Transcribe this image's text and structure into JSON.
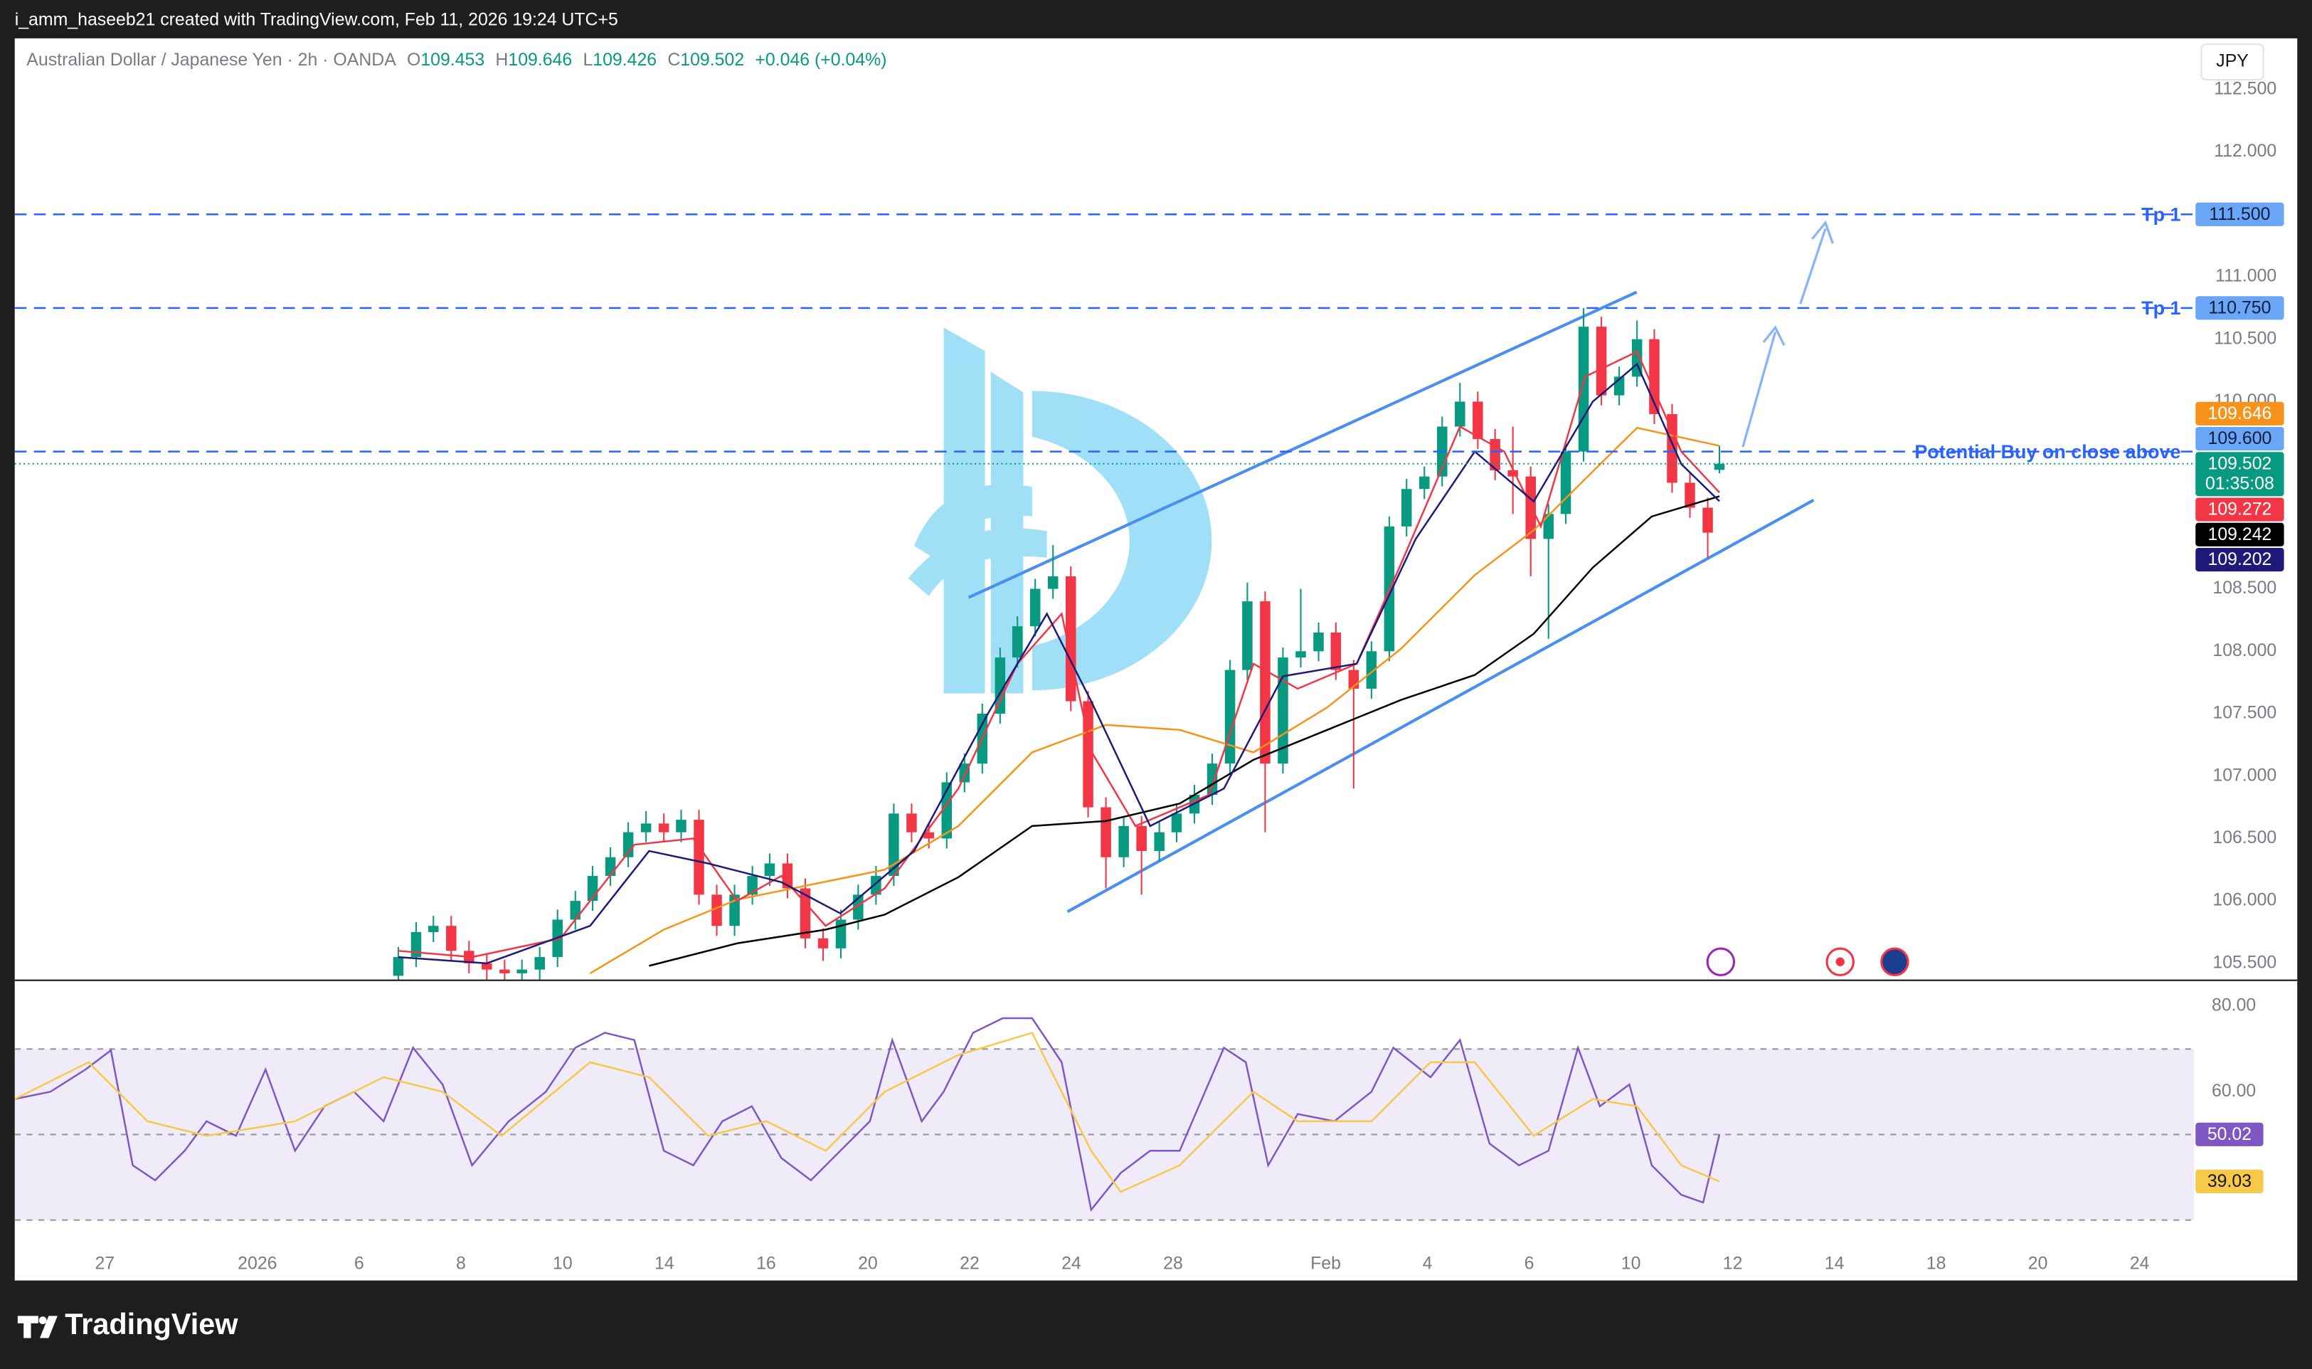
{
  "header": {
    "credit": "i_amm_haseeb21 created with TradingView.com, Feb 11, 2026 19:24 UTC+5"
  },
  "footer": {
    "brand": "TradingView"
  },
  "chart_data": [
    {
      "type": "candlestick",
      "title": "Australian Dollar / Japanese Yen · 2h · OANDA",
      "ohlc_letters": [
        "O",
        "H",
        "L",
        "C"
      ],
      "change": "+0.046 (+0.04%)",
      "currency": "JPY",
      "countdown": "01:35:08",
      "up_color": "#089981",
      "down_color": "#f23645",
      "x": [
        5.77,
        6.12,
        6.46,
        6.81,
        7.16,
        7.51,
        7.86,
        8.2,
        8.55,
        8.9,
        9.25,
        9.59,
        9.94,
        10.29,
        10.64,
        10.99,
        11.33,
        11.68,
        12.03,
        12.38,
        12.73,
        13.07,
        13.42,
        13.77,
        14.12,
        14.47,
        14.81,
        15.16,
        15.51,
        15.86,
        16.2,
        16.55,
        16.9,
        17.25,
        17.6,
        17.94,
        18.29,
        18.64,
        18.99,
        19.33,
        19.68,
        20.03,
        20.38,
        20.73,
        21.07,
        21.42,
        21.77,
        22.12,
        22.46,
        22.81,
        23.16,
        23.51,
        23.86,
        24.2,
        24.55,
        24.9,
        25.25,
        25.59,
        25.94,
        26.29,
        26.64,
        26.99,
        27.33,
        27.68,
        28.03,
        28.38,
        28.72,
        29.07,
        29.42,
        29.77,
        30.12,
        30.46,
        30.81,
        31.16,
        31.51,
        31.74
      ],
      "open": [
        105.4,
        105.55,
        105.75,
        105.8,
        105.6,
        105.5,
        105.45,
        105.42,
        105.45,
        105.55,
        105.85,
        106.0,
        106.2,
        106.35,
        106.55,
        106.62,
        106.55,
        106.65,
        106.05,
        105.8,
        106.05,
        106.2,
        106.3,
        106.1,
        105.7,
        105.62,
        105.85,
        106.05,
        106.2,
        106.7,
        106.55,
        106.5,
        106.95,
        107.1,
        107.5,
        107.95,
        108.2,
        108.5,
        108.6,
        107.6,
        106.75,
        106.35,
        106.6,
        106.4,
        106.55,
        106.7,
        106.85,
        107.1,
        107.85,
        108.4,
        107.1,
        107.95,
        108.0,
        108.15,
        107.85,
        107.7,
        108.0,
        109.0,
        109.3,
        109.4,
        109.8,
        110.0,
        109.7,
        109.45,
        109.4,
        108.9,
        109.1,
        109.6,
        110.6,
        110.05,
        110.2,
        110.5,
        109.9,
        109.35,
        109.15,
        109.453
      ],
      "high": [
        105.63,
        105.83,
        105.88,
        105.88,
        105.68,
        105.58,
        105.53,
        105.53,
        105.63,
        105.93,
        106.08,
        106.28,
        106.43,
        106.63,
        106.72,
        106.7,
        106.73,
        106.73,
        106.13,
        106.13,
        106.28,
        106.38,
        106.38,
        106.18,
        105.78,
        105.93,
        106.13,
        106.28,
        106.78,
        106.78,
        106.63,
        107.03,
        107.18,
        107.58,
        108.03,
        108.28,
        108.58,
        108.85,
        108.68,
        107.68,
        106.83,
        106.68,
        106.68,
        106.63,
        106.78,
        106.93,
        107.18,
        107.93,
        108.55,
        108.48,
        108.03,
        108.5,
        108.23,
        108.23,
        107.93,
        108.08,
        109.08,
        109.38,
        109.48,
        109.88,
        110.15,
        110.08,
        109.78,
        109.8,
        109.48,
        109.18,
        109.68,
        110.75,
        110.68,
        110.28,
        110.65,
        110.58,
        109.98,
        109.43,
        109.23,
        109.646
      ],
      "low": [
        105.32,
        105.47,
        105.67,
        105.52,
        105.42,
        105.37,
        105.34,
        105.34,
        105.37,
        105.47,
        105.77,
        105.92,
        106.12,
        106.27,
        106.47,
        106.47,
        106.47,
        105.97,
        105.72,
        105.72,
        105.97,
        106.12,
        106.02,
        105.62,
        105.52,
        105.54,
        105.77,
        105.97,
        106.12,
        106.47,
        106.42,
        106.42,
        106.87,
        107.02,
        107.42,
        107.87,
        108.12,
        108.42,
        107.52,
        106.67,
        106.1,
        106.27,
        106.05,
        106.32,
        106.47,
        106.62,
        106.77,
        107.02,
        107.77,
        106.55,
        107.02,
        107.87,
        107.92,
        107.77,
        106.9,
        107.62,
        107.92,
        108.92,
        109.22,
        109.32,
        109.72,
        109.62,
        109.37,
        109.1,
        108.6,
        108.1,
        109.02,
        109.52,
        109.97,
        109.97,
        110.12,
        109.82,
        109.27,
        109.07,
        108.75,
        109.426
      ],
      "close": [
        105.55,
        105.75,
        105.8,
        105.6,
        105.5,
        105.45,
        105.42,
        105.45,
        105.55,
        105.85,
        106.0,
        106.2,
        106.35,
        106.55,
        106.62,
        106.55,
        106.65,
        106.05,
        105.8,
        106.05,
        106.2,
        106.3,
        106.1,
        105.7,
        105.62,
        105.85,
        106.05,
        106.2,
        106.7,
        106.55,
        106.5,
        106.95,
        107.1,
        107.5,
        107.95,
        108.2,
        108.5,
        108.6,
        107.6,
        106.75,
        106.35,
        106.6,
        106.4,
        106.55,
        106.7,
        106.85,
        107.1,
        107.85,
        108.4,
        107.1,
        107.95,
        108.0,
        108.15,
        107.85,
        107.7,
        108.0,
        109.0,
        109.3,
        109.4,
        109.8,
        110.0,
        109.7,
        109.45,
        109.4,
        108.9,
        109.1,
        109.6,
        110.6,
        110.05,
        110.2,
        110.5,
        109.9,
        109.35,
        109.15,
        108.95,
        109.502
      ],
      "series": [
        {
          "color": "#f7931a",
          "x": [
            9.54,
            10.99,
            12.43,
            13.88,
            15.33,
            16.78,
            18.23,
            19.68,
            21.13,
            22.58,
            24.03,
            25.48,
            26.93,
            28.09,
            29.25,
            30.12,
            31.74
          ],
          "values": [
            105.42,
            105.77,
            106.01,
            106.13,
            106.25,
            106.6,
            107.19,
            107.41,
            107.37,
            107.19,
            107.55,
            108.02,
            108.61,
            108.97,
            109.44,
            109.79,
            109.646
          ]
        },
        {
          "color": "#f23645",
          "x": [
            5.77,
            7.22,
            8.96,
            10.41,
            11.57,
            12.43,
            13.3,
            14.17,
            15.33,
            16.78,
            17.94,
            18.81,
            19.39,
            20.26,
            21.71,
            22.58,
            23.45,
            24.61,
            25.48,
            26.64,
            27.51,
            28.23,
            29.1,
            30.12,
            30.99,
            31.74
          ],
          "values": [
            105.6,
            105.55,
            105.7,
            106.45,
            106.5,
            106.0,
            106.2,
            105.8,
            106.1,
            106.9,
            107.9,
            108.3,
            107.2,
            106.6,
            106.85,
            107.9,
            107.7,
            107.9,
            108.7,
            109.8,
            109.6,
            109.0,
            110.2,
            110.4,
            109.6,
            109.272
          ]
        },
        {
          "color": "#000000",
          "x": [
            10.7,
            12.43,
            14.17,
            15.33,
            16.78,
            18.23,
            19.68,
            21.13,
            22.58,
            24.03,
            25.48,
            26.93,
            28.09,
            29.25,
            30.41,
            31.74
          ],
          "values": [
            105.48,
            105.66,
            105.77,
            105.89,
            106.19,
            106.6,
            106.64,
            106.78,
            107.13,
            107.37,
            107.61,
            107.81,
            108.14,
            108.67,
            109.08,
            109.242
          ]
        },
        {
          "color": "#1f1a7a",
          "x": [
            5.77,
            7.51,
            9.54,
            10.7,
            11.86,
            13.3,
            14.46,
            15.91,
            17.36,
            18.52,
            19.39,
            20.55,
            22.0,
            23.16,
            24.61,
            25.77,
            26.93,
            28.09,
            29.25,
            30.12,
            30.99,
            31.74
          ],
          "values": [
            105.55,
            105.5,
            105.8,
            106.4,
            106.3,
            106.15,
            105.9,
            106.4,
            107.5,
            108.3,
            107.6,
            106.6,
            106.9,
            107.8,
            107.9,
            108.9,
            109.6,
            109.2,
            110.0,
            110.3,
            109.5,
            109.202
          ]
        }
      ],
      "levels": [
        {
          "value": 111.5,
          "label": "111.500",
          "text": "Tp 1"
        },
        {
          "value": 110.75,
          "label": "110.750",
          "text": "Tp 1"
        },
        {
          "value": 109.6,
          "label": "109.600",
          "text": "Potential Buy on close above"
        }
      ],
      "xlim": [
        -1.77,
        41.07
      ],
      "xticks": [
        {
          "value": 0,
          "label": "27"
        },
        {
          "value": 3,
          "label": "2026"
        },
        {
          "value": 5,
          "label": "6"
        },
        {
          "value": 7,
          "label": "8"
        },
        {
          "value": 9,
          "label": "10"
        },
        {
          "value": 11,
          "label": "14"
        },
        {
          "value": 13,
          "label": "16"
        },
        {
          "value": 15,
          "label": "20"
        },
        {
          "value": 17,
          "label": "22"
        },
        {
          "value": 19,
          "label": "24"
        },
        {
          "value": 21,
          "label": "28"
        },
        {
          "value": 24,
          "label": "Feb"
        },
        {
          "value": 26,
          "label": "4"
        },
        {
          "value": 28,
          "label": "6"
        },
        {
          "value": 30,
          "label": "10"
        },
        {
          "value": 32,
          "label": "12"
        },
        {
          "value": 34,
          "label": "14"
        },
        {
          "value": 36,
          "label": "18"
        },
        {
          "value": 38,
          "label": "20"
        },
        {
          "value": 40,
          "label": "24"
        }
      ],
      "ylim": [
        105.37,
        112.91
      ],
      "yticks": [
        {
          "value": 112.5,
          "label": "112.500"
        },
        {
          "value": 112,
          "label": "112.000"
        },
        {
          "value": 111,
          "label": "111.000"
        },
        {
          "value": 110.5,
          "label": "110.500"
        },
        {
          "value": 110,
          "label": "110.000"
        },
        {
          "value": 108.5,
          "label": "108.500"
        },
        {
          "value": 108,
          "label": "108.000"
        },
        {
          "value": 107.5,
          "label": "107.500"
        },
        {
          "value": 107,
          "label": "107.000"
        },
        {
          "value": 106.5,
          "label": "106.500"
        },
        {
          "value": 106,
          "label": "106.000"
        },
        {
          "value": 105.5,
          "label": "105.500"
        }
      ],
      "grid": false
    },
    {
      "type": "line",
      "series": [
        {
          "color": "#7e57c2",
          "x": [
            -1.77,
            -1.07,
            -0.38,
            0.12,
            0.55,
            0.99,
            1.57,
            2.0,
            2.58,
            3.16,
            3.74,
            4.32,
            4.9,
            5.48,
            6.06,
            6.64,
            7.22,
            7.94,
            8.67,
            9.25,
            9.83,
            10.41,
            10.99,
            11.57,
            12.14,
            12.72,
            13.3,
            13.88,
            14.46,
            15.04,
            15.48,
            16.06,
            16.49,
            17.07,
            17.65,
            18.23,
            18.81,
            19.39,
            19.97,
            20.55,
            21.13,
            22.0,
            22.43,
            22.87,
            23.45,
            24.17,
            24.9,
            25.33,
            26.06,
            26.64,
            27.22,
            27.8,
            28.38,
            28.96,
            29.39,
            29.97,
            30.41,
            30.99,
            31.42,
            31.74
          ],
          "values": [
            58.3,
            60.0,
            65.2,
            69.7,
            42.8,
            39.3,
            46.2,
            53.1,
            49.7,
            65.2,
            46.2,
            56.6,
            60.0,
            53.1,
            70.3,
            61.7,
            42.8,
            53.1,
            60.0,
            70.3,
            73.8,
            72.1,
            46.2,
            42.8,
            53.1,
            56.6,
            44.5,
            39.3,
            46.2,
            53.1,
            72.1,
            53.1,
            60.0,
            73.8,
            77.2,
            77.2,
            66.9,
            32.4,
            41.0,
            46.2,
            46.2,
            70.3,
            66.9,
            42.8,
            54.8,
            53.1,
            60.0,
            70.3,
            63.4,
            72.1,
            47.9,
            42.8,
            46.2,
            70.3,
            56.6,
            61.7,
            42.8,
            35.9,
            34.1,
            50.02
          ]
        },
        {
          "color": "#f7c948",
          "x": [
            -1.77,
            -0.32,
            0.84,
            2.0,
            3.74,
            5.48,
            6.64,
            7.8,
            9.54,
            10.7,
            11.86,
            13.01,
            14.17,
            15.33,
            16.78,
            18.23,
            19.39,
            19.97,
            21.13,
            22.58,
            23.45,
            24.9,
            26.06,
            26.93,
            28.09,
            29.25,
            30.12,
            30.99,
            31.74
          ],
          "values": [
            58.3,
            66.9,
            53.1,
            49.7,
            53.1,
            63.4,
            60.0,
            49.7,
            66.9,
            63.4,
            49.7,
            53.1,
            46.2,
            60.0,
            68.6,
            73.8,
            46.2,
            36.6,
            42.8,
            60.0,
            53.1,
            53.1,
            66.9,
            66.9,
            49.7,
            58.3,
            56.6,
            42.8,
            39.03
          ]
        }
      ],
      "levels": [
        70,
        50,
        30
      ],
      "xlim": [
        -1.77,
        41.07
      ],
      "ylim": [
        23.8,
        85.9
      ],
      "yticks": [
        {
          "value": 80,
          "label": "80.00"
        },
        {
          "value": 60,
          "label": "60.00"
        }
      ],
      "grid": false
    }
  ]
}
